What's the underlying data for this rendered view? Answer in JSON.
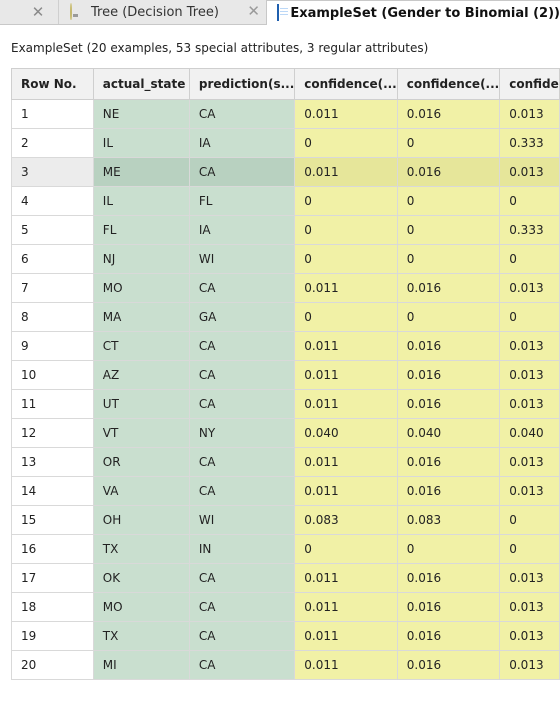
{
  "tabs": [
    {
      "label": "Tree (Decision Tree)",
      "icon": "lightbulb-icon",
      "active": false
    },
    {
      "label": "ExampleSet (Gender to Binomial (2))",
      "icon": "table-icon",
      "active": true
    }
  ],
  "summary": "ExampleSet (20 examples, 53 special attributes, 3 regular attributes)",
  "table": {
    "headers": [
      "Row No.",
      "actual_state",
      "prediction(s...",
      "confidence(...",
      "confidence(...",
      "confide"
    ],
    "selected_row": 3,
    "rows": [
      [
        "1",
        "NE",
        "CA",
        "0.011",
        "0.016",
        "0.013"
      ],
      [
        "2",
        "IL",
        "IA",
        "0",
        "0",
        "0.333"
      ],
      [
        "3",
        "ME",
        "CA",
        "0.011",
        "0.016",
        "0.013"
      ],
      [
        "4",
        "IL",
        "FL",
        "0",
        "0",
        "0"
      ],
      [
        "5",
        "FL",
        "IA",
        "0",
        "0",
        "0.333"
      ],
      [
        "6",
        "NJ",
        "WI",
        "0",
        "0",
        "0"
      ],
      [
        "7",
        "MO",
        "CA",
        "0.011",
        "0.016",
        "0.013"
      ],
      [
        "8",
        "MA",
        "GA",
        "0",
        "0",
        "0"
      ],
      [
        "9",
        "CT",
        "CA",
        "0.011",
        "0.016",
        "0.013"
      ],
      [
        "10",
        "AZ",
        "CA",
        "0.011",
        "0.016",
        "0.013"
      ],
      [
        "11",
        "UT",
        "CA",
        "0.011",
        "0.016",
        "0.013"
      ],
      [
        "12",
        "VT",
        "NY",
        "0.040",
        "0.040",
        "0.040"
      ],
      [
        "13",
        "OR",
        "CA",
        "0.011",
        "0.016",
        "0.013"
      ],
      [
        "14",
        "VA",
        "CA",
        "0.011",
        "0.016",
        "0.013"
      ],
      [
        "15",
        "OH",
        "WI",
        "0.083",
        "0.083",
        "0"
      ],
      [
        "16",
        "TX",
        "IN",
        "0",
        "0",
        "0"
      ],
      [
        "17",
        "OK",
        "CA",
        "0.011",
        "0.016",
        "0.013"
      ],
      [
        "18",
        "MO",
        "CA",
        "0.011",
        "0.016",
        "0.013"
      ],
      [
        "19",
        "TX",
        "CA",
        "0.011",
        "0.016",
        "0.013"
      ],
      [
        "20",
        "MI",
        "CA",
        "0.011",
        "0.016",
        "0.013"
      ]
    ]
  },
  "colors": {
    "categorical_cell": "#c9dfcf",
    "numeric_cell": "#f1f1a6",
    "header": "#f1f1f1",
    "tabbar": "#e8e8e8"
  }
}
